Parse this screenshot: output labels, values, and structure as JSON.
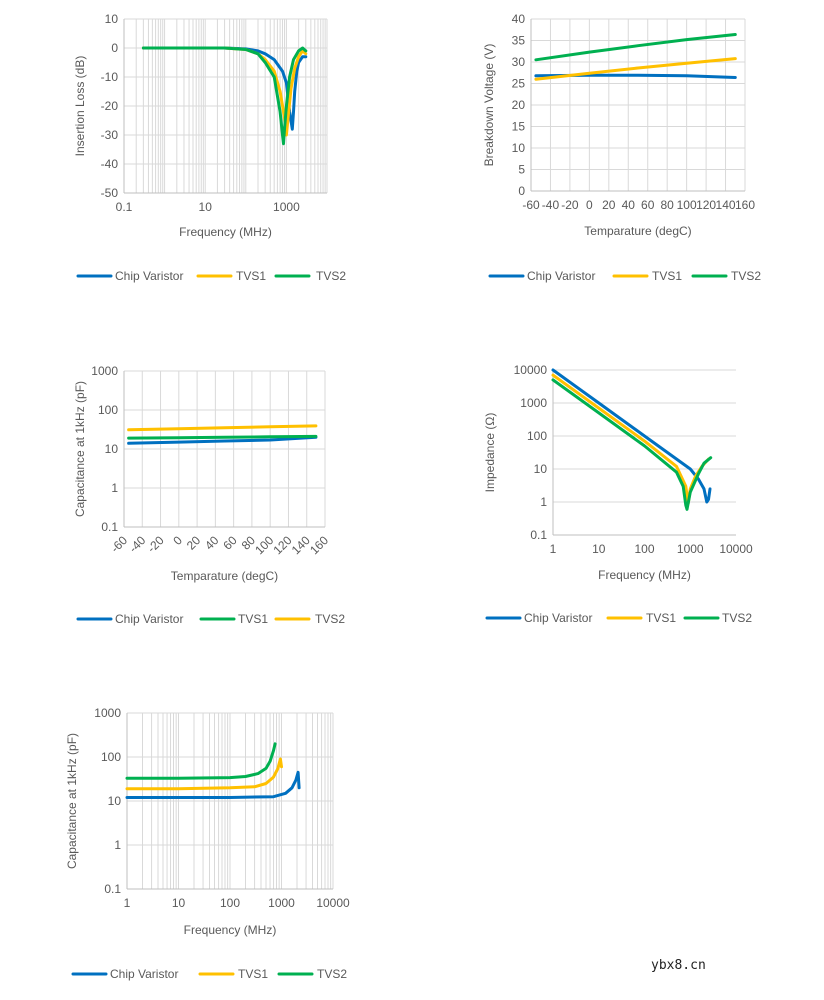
{
  "colors": {
    "blue": "#0070c0",
    "yellow": "#ffc000",
    "green": "#00b050",
    "grid": "#d9d9d9",
    "text": "#595959"
  },
  "watermark": "ybx8.cn",
  "chart_data": [
    {
      "id": "insertion-loss",
      "type": "line",
      "xscale": "log",
      "xlabel": "Frequency (MHz)",
      "ylabel": "Insertion Loss (dB)",
      "xlim": [
        0.1,
        10000
      ],
      "xticks": [
        0.1,
        10,
        1000
      ],
      "xtick_labels": [
        "0.1",
        "10",
        "1000"
      ],
      "ylim": [
        -50,
        10
      ],
      "yticks": [
        10,
        0,
        -10,
        -20,
        -30,
        -40,
        -50
      ],
      "ytick_labels": [
        "10",
        "0",
        "-10",
        "-20",
        "-30",
        "-40",
        "-50"
      ],
      "grid": "both",
      "legend": [
        "Chip Varistor",
        "TVS1",
        "TVS2"
      ],
      "legend_colors": [
        "blue",
        "yellow",
        "green"
      ],
      "series": [
        {
          "name": "Chip Varistor",
          "color": "blue",
          "x": [
            0.3,
            10,
            30,
            100,
            200,
            300,
            500,
            800,
            1000,
            1200,
            1400,
            1500,
            1600,
            1800,
            2000,
            2500,
            3000
          ],
          "y": [
            0,
            0,
            0,
            -0.3,
            -1,
            -2,
            -4,
            -8,
            -12,
            -22,
            -28,
            -22,
            -15,
            -8,
            -5,
            -3,
            -3
          ]
        },
        {
          "name": "TVS1",
          "color": "yellow",
          "x": [
            0.3,
            10,
            30,
            100,
            200,
            300,
            500,
            700,
            900,
            1000,
            1100,
            1300,
            1600,
            2000,
            2500,
            3000
          ],
          "y": [
            0,
            0,
            0,
            -0.5,
            -2,
            -4,
            -8,
            -15,
            -24,
            -30,
            -24,
            -14,
            -7,
            -3,
            -1,
            -2
          ]
        },
        {
          "name": "TVS2",
          "color": "green",
          "x": [
            0.3,
            10,
            30,
            100,
            200,
            300,
            500,
            700,
            800,
            850,
            900,
            1000,
            1200,
            1500,
            2000,
            2500,
            3000
          ],
          "y": [
            0,
            0,
            0,
            -0.5,
            -2,
            -5,
            -10,
            -22,
            -30,
            -33,
            -28,
            -20,
            -10,
            -4,
            -1,
            0,
            -1
          ]
        }
      ]
    },
    {
      "id": "breakdown-voltage",
      "type": "line",
      "xscale": "linear",
      "xlabel": "Temparature (degC)",
      "ylabel": "Breakdown Voltage (V)",
      "xlim": [
        -60,
        160
      ],
      "xticks": [
        -60,
        -40,
        -20,
        0,
        20,
        40,
        60,
        80,
        100,
        120,
        140,
        160
      ],
      "xtick_labels": [
        "-60",
        "-40",
        "-20",
        "0",
        "20",
        "40",
        "60",
        "80",
        "100",
        "120",
        "140",
        "160"
      ],
      "ylim": [
        0,
        40
      ],
      "yticks": [
        40,
        35,
        30,
        25,
        20,
        15,
        10,
        5,
        0
      ],
      "ytick_labels": [
        "40",
        "35",
        "30",
        "25",
        "20",
        "15",
        "10",
        "5",
        "0"
      ],
      "grid": "both",
      "legend": [
        "Chip Varistor",
        "TVS1",
        "TVS2"
      ],
      "legend_colors": [
        "blue",
        "yellow",
        "green"
      ],
      "series": [
        {
          "name": "Chip Varistor",
          "color": "blue",
          "x": [
            -55,
            0,
            50,
            100,
            150
          ],
          "y": [
            26.8,
            26.9,
            26.9,
            26.8,
            26.4
          ]
        },
        {
          "name": "TVS1",
          "color": "yellow",
          "x": [
            -55,
            0,
            50,
            100,
            150
          ],
          "y": [
            26,
            27.4,
            28.6,
            29.7,
            30.8
          ]
        },
        {
          "name": "TVS2",
          "color": "green",
          "x": [
            -55,
            0,
            50,
            100,
            150
          ],
          "y": [
            30.5,
            32.3,
            33.8,
            35.2,
            36.4
          ]
        }
      ]
    },
    {
      "id": "capacitance-temp",
      "type": "line",
      "xscale": "linear",
      "yscale": "log",
      "xlabel": "Temparature (degC)",
      "ylabel": "Capacitance at 1kHz (pF)",
      "xlim": [
        -60,
        160
      ],
      "xticks": [
        -60,
        -40,
        -20,
        0,
        20,
        40,
        60,
        80,
        100,
        120,
        140,
        160
      ],
      "xtick_labels": [
        "-60",
        "-40",
        "-20",
        "0",
        "20",
        "40",
        "60",
        "80",
        "100",
        "120",
        "140",
        "160"
      ],
      "ylim": [
        0.1,
        1000
      ],
      "yticks": [
        1000,
        100,
        10,
        1,
        0.1
      ],
      "ytick_labels": [
        "1000",
        "100",
        "10",
        "1",
        "0.1"
      ],
      "grid": "both",
      "legend": [
        "Chip Varistor",
        "TVS1",
        "TVS2"
      ],
      "legend_colors": [
        "blue",
        "green",
        "yellow"
      ],
      "series": [
        {
          "name": "Chip Varistor",
          "color": "blue",
          "x": [
            -55,
            0,
            50,
            100,
            150
          ],
          "y": [
            14,
            15,
            16,
            17,
            20
          ]
        },
        {
          "name": "TVS1",
          "color": "green",
          "x": [
            -55,
            0,
            50,
            100,
            150
          ],
          "y": [
            19,
            19.5,
            20,
            20.5,
            21
          ]
        },
        {
          "name": "TVS2",
          "color": "yellow",
          "x": [
            -55,
            0,
            50,
            100,
            150
          ],
          "y": [
            31,
            33,
            35,
            37,
            39
          ]
        }
      ]
    },
    {
      "id": "impedance",
      "type": "line",
      "xscale": "log",
      "yscale": "log",
      "xlabel": "Frequency (MHz)",
      "ylabel": "Impedance (Ω)",
      "xlim": [
        1,
        10000
      ],
      "xticks": [
        1,
        10,
        100,
        1000,
        10000
      ],
      "xtick_labels": [
        "1",
        "10",
        "100",
        "1000",
        "10000"
      ],
      "ylim": [
        0.1,
        10000
      ],
      "yticks": [
        10000,
        1000,
        100,
        10,
        1,
        0.1
      ],
      "ytick_labels": [
        "10000",
        "1000",
        "100",
        "10",
        "1",
        "0.1"
      ],
      "grid": "y",
      "legend": [
        "Chip Varistor",
        "TVS1",
        "TVS2"
      ],
      "legend_colors": [
        "blue",
        "yellow",
        "green"
      ],
      "series": [
        {
          "name": "Chip Varistor",
          "color": "blue",
          "x": [
            1,
            10,
            100,
            1000,
            1500,
            2000,
            2300,
            2500,
            2700
          ],
          "y": [
            10000,
            1000,
            100,
            10,
            5,
            2.5,
            1,
            1.2,
            2.5
          ]
        },
        {
          "name": "TVS1",
          "color": "yellow",
          "x": [
            1,
            10,
            100,
            500,
            800,
            900,
            1000,
            1300,
            1800,
            2500
          ],
          "y": [
            7000,
            700,
            70,
            12,
            3,
            0.9,
            2.5,
            6,
            12,
            20
          ]
        },
        {
          "name": "TVS2",
          "color": "green",
          "x": [
            1,
            10,
            100,
            500,
            700,
            800,
            850,
            1000,
            1500,
            2000,
            2800
          ],
          "y": [
            5000,
            500,
            50,
            8,
            3,
            0.8,
            0.6,
            2,
            7,
            15,
            22
          ]
        }
      ]
    },
    {
      "id": "capacitance-freq",
      "type": "line",
      "xscale": "log",
      "yscale": "log",
      "xlabel": "Frequency (MHz)",
      "ylabel": "Capacitance at 1kHz (pF)",
      "xlim": [
        1,
        10000
      ],
      "xticks": [
        1,
        10,
        100,
        1000,
        10000
      ],
      "xtick_labels": [
        "1",
        "10",
        "100",
        "1000",
        "10000"
      ],
      "ylim": [
        0.1,
        1000
      ],
      "yticks": [
        1000,
        100,
        10,
        1,
        0.1
      ],
      "ytick_labels": [
        "1000",
        "100",
        "10",
        "1",
        "0.1"
      ],
      "grid": "both",
      "legend": [
        "Chip Varistor",
        "TVS1",
        "TVS2"
      ],
      "legend_colors": [
        "blue",
        "yellow",
        "green"
      ],
      "series": [
        {
          "name": "Chip Varistor",
          "color": "blue",
          "x": [
            1,
            10,
            100,
            700,
            1200,
            1600,
            1900,
            2100,
            2200
          ],
          "y": [
            12,
            12,
            12,
            12.5,
            15,
            20,
            30,
            45,
            20
          ]
        },
        {
          "name": "TVS1",
          "color": "yellow",
          "x": [
            1,
            10,
            100,
            300,
            500,
            700,
            850,
            950,
            1000
          ],
          "y": [
            19,
            19,
            20,
            21,
            25,
            35,
            55,
            90,
            60
          ]
        },
        {
          "name": "TVS2",
          "color": "green",
          "x": [
            1,
            10,
            100,
            200,
            350,
            500,
            600,
            700,
            750
          ],
          "y": [
            33,
            33,
            34,
            36,
            42,
            55,
            80,
            140,
            200
          ]
        }
      ]
    }
  ]
}
